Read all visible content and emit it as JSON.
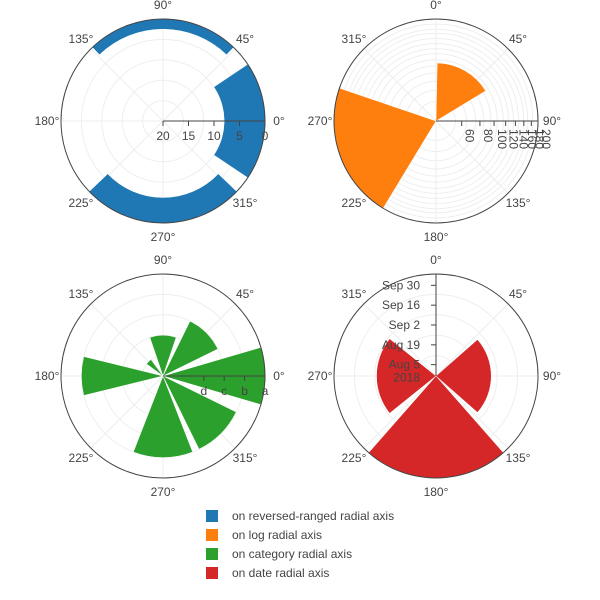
{
  "chart_data": [
    {
      "type": "barpolar",
      "radial_axis": "reversed-ranged",
      "radial_range": [
        20,
        0
      ],
      "radial_ticks": [
        "20",
        "15",
        "10",
        "5",
        "0"
      ],
      "angular_ticks": [
        "0°",
        "45°",
        "90°",
        "135°",
        "180°",
        "225°",
        "270°",
        "315°"
      ],
      "bars": [
        {
          "theta": 0,
          "width": 70,
          "r": 8
        },
        {
          "theta": 90,
          "width": 90,
          "r": 2
        },
        {
          "theta": 180,
          "width": 85,
          "r": 0
        },
        {
          "theta": 270,
          "width": 95,
          "r": 5
        }
      ],
      "color": "#1f77b4",
      "series_name": "on reversed-ranged radial axis"
    },
    {
      "type": "barpolar",
      "radial_axis": "log",
      "radial_ticks": [
        "60",
        "80",
        "100",
        "120",
        "140",
        "160",
        "180",
        "200"
      ],
      "angular_ticks": [
        "0°",
        "45°",
        "90°",
        "135°",
        "180°",
        "225°",
        "270°",
        "315°"
      ],
      "bars": [
        {
          "theta": 30,
          "width": 60,
          "r": 100
        },
        {
          "theta": 250,
          "width": 80,
          "r": 200
        }
      ],
      "color": "#ff7f0e",
      "series_name": "on log radial axis"
    },
    {
      "type": "barpolar",
      "radial_axis": "category",
      "radial_ticks": [
        "d",
        "c",
        "b",
        "a"
      ],
      "angular_ticks": [
        "0°",
        "45°",
        "90°",
        "135°",
        "180°",
        "225°",
        "270°",
        "315°"
      ],
      "bars": [
        {
          "theta": 0,
          "width": 35,
          "r": "a"
        },
        {
          "theta": 45,
          "width": 40,
          "r": "c"
        },
        {
          "theta": 90,
          "width": 40,
          "r": "d"
        },
        {
          "theta": 135,
          "width": 20,
          "r": "e"
        },
        {
          "theta": 180,
          "width": 30,
          "r": "b"
        },
        {
          "theta": 270,
          "width": 45,
          "r": "b"
        },
        {
          "theta": 315,
          "width": 40,
          "r": "b"
        }
      ],
      "color": "#2ca02c",
      "series_name": "on category radial axis"
    },
    {
      "type": "barpolar",
      "radial_axis": "date",
      "radial_ticks": [
        "Aug 5\n2018",
        "Aug 19",
        "Sep 2",
        "Sep 16",
        "Sep 30"
      ],
      "angular_ticks": [
        "0°",
        "45°",
        "90°",
        "135°",
        "180°",
        "225°",
        "270°",
        "315°"
      ],
      "bars": [
        {
          "theta": 90,
          "width": 85,
          "r": "2018-09-05"
        },
        {
          "theta": 180,
          "width": 85,
          "r": "2018-10-08"
        },
        {
          "theta": 270,
          "width": 80,
          "r": "2018-09-08"
        }
      ],
      "color": "#d62728",
      "series_name": "on date radial axis"
    }
  ]
}
